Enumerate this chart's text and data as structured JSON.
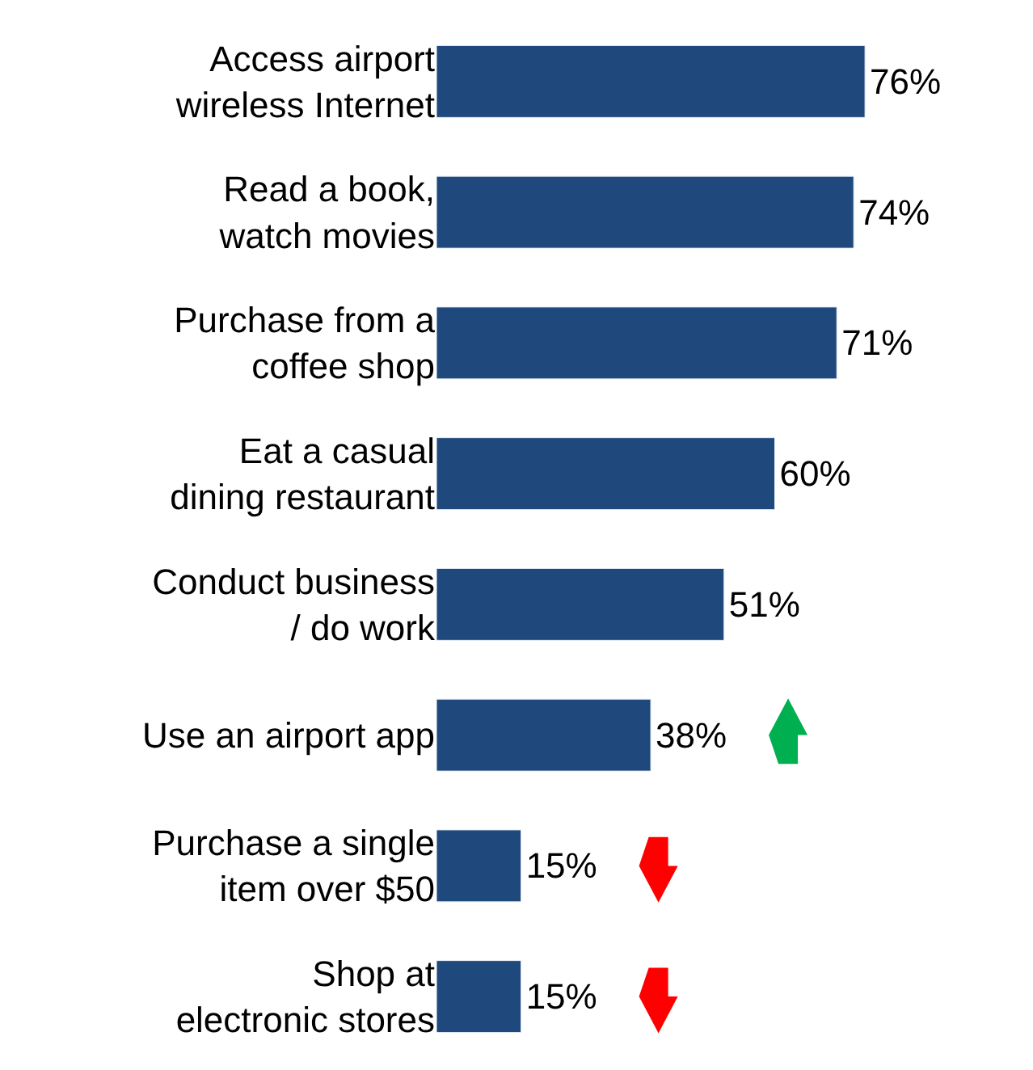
{
  "chart_data": {
    "type": "bar",
    "orientation": "horizontal",
    "categories": [
      "Access airport wireless Internet",
      "Read a book, watch movies",
      "Purchase from a coffee shop",
      "Eat a casual dining restaurant",
      "Conduct business / do work",
      "Use an airport app",
      "Purchase a single item over $50",
      "Shop at electronic stores"
    ],
    "values": [
      76,
      74,
      71,
      60,
      51,
      38,
      15,
      15
    ],
    "value_labels": [
      "76%",
      "74%",
      "71%",
      "60%",
      "51%",
      "38%",
      "15%",
      "15%"
    ],
    "color": "#1f497d",
    "tick_labels": "y",
    "legend": false
  }
}
